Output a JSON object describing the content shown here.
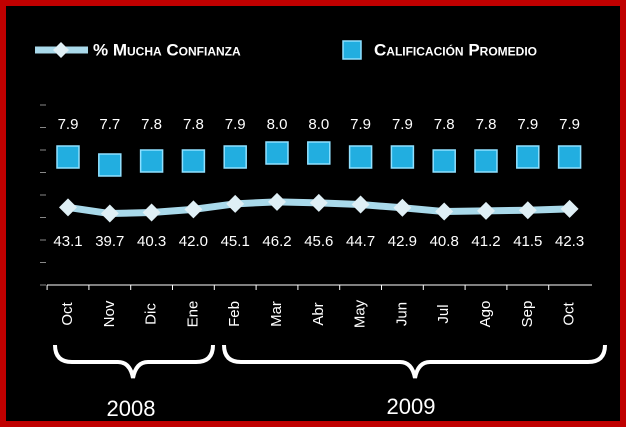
{
  "chart_data": {
    "type": "line",
    "categories": [
      "Oct",
      "Nov",
      "Dic",
      "Ene",
      "Feb",
      "Mar",
      "Abr",
      "May",
      "Jun",
      "Jul",
      "Ago",
      "Sep",
      "Oct"
    ],
    "series": [
      {
        "name": "% Mucha Confianza",
        "color": "#a9d9ea",
        "axis": "y",
        "values": [
          43.1,
          39.7,
          40.3,
          42.0,
          45.1,
          46.2,
          45.6,
          44.7,
          42.9,
          40.8,
          41.2,
          41.5,
          42.3
        ],
        "value_labels": [
          "43.1",
          "39.7",
          "40.3",
          "42.0",
          "45.1",
          "46.2",
          "45.6",
          "44.7",
          "42.9",
          "40.8",
          "41.2",
          "41.5",
          "42.3"
        ]
      },
      {
        "name": "Calificación Promedio",
        "color": "#22aee0",
        "axis": "y2",
        "values": [
          7.9,
          7.7,
          7.8,
          7.8,
          7.9,
          8.0,
          8.0,
          7.9,
          7.9,
          7.8,
          7.8,
          7.9,
          7.9
        ],
        "value_labels": [
          "7.9",
          "7.7",
          "7.8",
          "7.8",
          "7.9",
          "8.0",
          "8.0",
          "7.9",
          "7.9",
          "7.8",
          "7.8",
          "7.9",
          "7.9"
        ]
      }
    ],
    "ylim": [
      0,
      100
    ],
    "yticks": [
      0,
      12.5,
      25,
      37.5,
      50,
      62.5,
      75,
      87.5,
      100
    ],
    "y2lim": [
      4.7,
      9.2
    ],
    "annotations": [
      "2008",
      "2009"
    ]
  }
}
